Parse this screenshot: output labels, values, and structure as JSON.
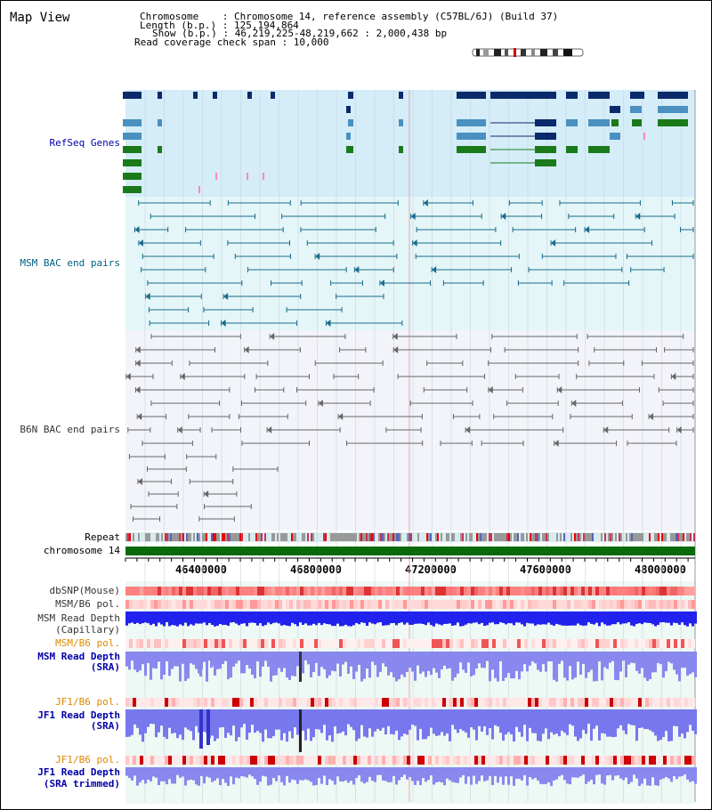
{
  "title": "Map View",
  "info": {
    "chromosome": "Chromosome    : Chromosome 14, reference assembly (C57BL/6J) (Build 37)",
    "length": "Length (b.p.) : 125,194,864",
    "show": "Show (b.p.) : 46,219,225-48,219,662 : 2,000,438 bp",
    "coverage": "Read coverage check span : 10,000"
  },
  "tracks": {
    "refseq": "RefSeq Genes",
    "msm_bac": "MSM BAC end pairs",
    "b6n_bac": "B6N BAC end pairs",
    "repeat": "Repeat",
    "chromosome": "chromosome 14",
    "dbsnp": "dbSNP(Mouse)",
    "msm_b6_pol_1": "MSM/B6 pol.",
    "msm_read_depth_cap_1": "MSM Read Depth",
    "msm_read_depth_cap_2": "(Capillary)",
    "msm_b6_pol_2": "MSM/B6 pol.",
    "msm_read_depth_sra_1": "MSM Read Depth",
    "msm_read_depth_sra_2": "(SRA)",
    "jf1_b6_pol_1": "JF1/B6 pol.",
    "jf1_read_depth_1": "JF1 Read Depth",
    "jf1_read_depth_2": "(SRA)",
    "jf1_b6_pol_2": "JF1/B6 pol.",
    "jf1_read_depth_trim_1": "JF1 Read Depth",
    "jf1_read_depth_trim_2": "(SRA trimmed)"
  },
  "axis": {
    "ticks": [
      "46400000",
      "46800000",
      "47200000",
      "47600000",
      "48000000"
    ],
    "range": [
      46219225,
      48219662
    ]
  },
  "colors": {
    "refseq_navy": "#0b2a6b",
    "refseq_blue": "#4a90c0",
    "refseq_green": "#1a7a1a",
    "msm_teal": "#1a6a8a",
    "b6n_gray": "#666666",
    "label_blue": "#0000aa",
    "label_teal": "#006080",
    "label_orange": "#dd8800"
  }
}
